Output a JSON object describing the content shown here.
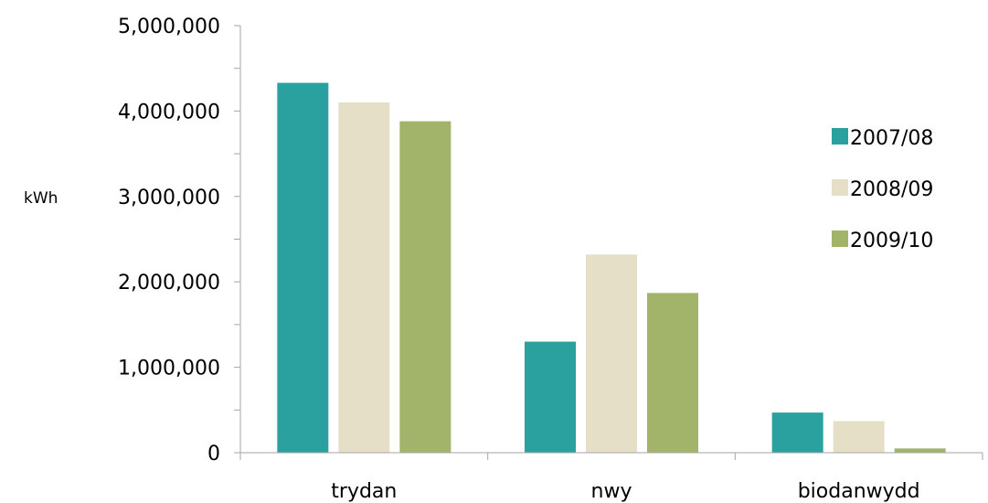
{
  "chart_data": {
    "type": "bar",
    "ylabel": "kWh",
    "ylim": [
      0,
      5000000
    ],
    "ytick_labels": [
      "0",
      "1,000,000",
      "2,000,000",
      "3,000,000",
      "4,000,000",
      "5,000,000"
    ],
    "ytick_values": [
      0,
      1000000,
      2000000,
      3000000,
      4000000,
      5000000
    ],
    "grid": false,
    "legend_position": "right",
    "categories": [
      "trydan",
      "nwy",
      "biodanwydd"
    ],
    "series": [
      {
        "name": "2007/08",
        "color": "#2aa09f",
        "values": [
          4330000,
          1300000,
          470000
        ]
      },
      {
        "name": "2008/09",
        "color": "#e4dfc6",
        "values": [
          4100000,
          2320000,
          370000
        ]
      },
      {
        "name": "2009/10",
        "color": "#a2b46a",
        "values": [
          3880000,
          1870000,
          50000
        ]
      }
    ]
  }
}
